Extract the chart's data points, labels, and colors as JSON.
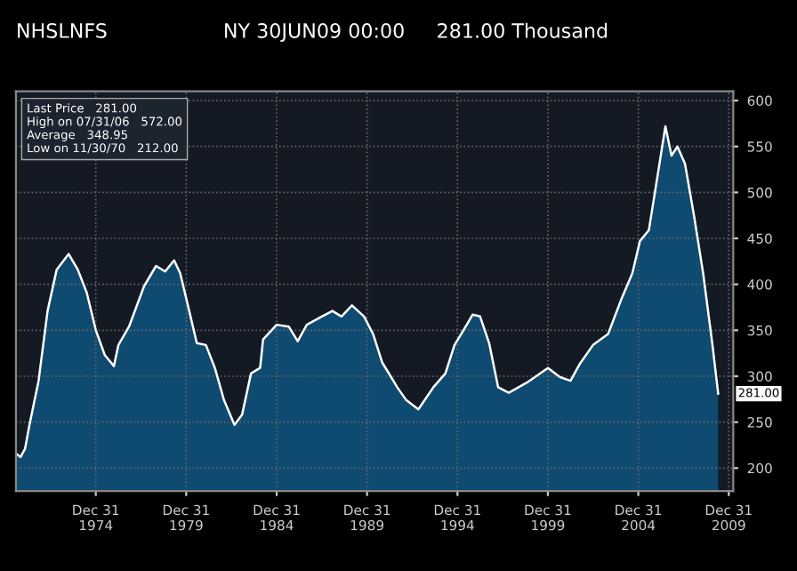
{
  "chart_data": {
    "type": "area",
    "title": "NHSLNFS",
    "subtitle": "NY 30JUN09 00:00     281.00 Thousand",
    "annotations": [
      "Last Price   281.00",
      "High on 07/31/06   572.00",
      "Average   348.95",
      "Low on 11/30/70   212.00",
      {
        "text": "281.00",
        "x": "2009-06",
        "y": 281
      }
    ],
    "x": [
      "1970-08",
      "1970-11",
      "1971-02",
      "1971-05",
      "1971-11",
      "1972-05",
      "1972-11",
      "1973-07",
      "1974-01",
      "1974-07",
      "1975-01",
      "1975-07",
      "1976-01",
      "1976-04",
      "1976-11",
      "1977-09",
      "1978-05",
      "1978-11",
      "1979-05",
      "1979-09",
      "1980-03",
      "1980-08",
      "1981-02",
      "1981-08",
      "1982-02",
      "1982-09",
      "1983-02",
      "1983-08",
      "1984-02",
      "1984-04",
      "1985-01",
      "1985-09",
      "1986-03",
      "1986-09",
      "1987-07",
      "1988-02",
      "1988-08",
      "1989-03",
      "1989-11",
      "1990-05",
      "1990-11",
      "1991-05",
      "1991-09",
      "1992-03",
      "1992-11",
      "1993-09",
      "1994-05",
      "1994-11",
      "1995-05",
      "1995-11",
      "1996-04",
      "1996-10",
      "1997-04",
      "1997-11",
      "1998-11",
      "2000-01",
      "2000-09",
      "2001-04",
      "2001-10",
      "2002-07",
      "2003-05",
      "2004-02",
      "2004-09",
      "2005-02",
      "2005-08",
      "2006-02",
      "2006-07",
      "2006-11",
      "2007-03",
      "2007-08",
      "2008-02",
      "2008-08",
      "2009-02",
      "2009-06"
    ],
    "values": [
      216,
      212,
      221,
      247,
      295,
      371,
      416,
      433,
      416,
      391,
      350,
      323,
      311,
      334,
      354,
      398,
      420,
      414,
      426,
      412,
      371,
      336,
      334,
      309,
      274,
      247,
      258,
      303,
      309,
      340,
      356,
      354,
      338,
      356,
      365,
      371,
      365,
      377,
      365,
      346,
      315,
      299,
      288,
      274,
      264,
      288,
      303,
      334,
      350,
      367,
      365,
      336,
      288,
      282,
      293,
      309,
      299,
      295,
      313,
      334,
      346,
      385,
      412,
      447,
      459,
      521,
      572,
      540,
      550,
      531,
      474,
      412,
      336,
      281
    ],
    "color": "#0f4a70",
    "xlim": [
      "1970-08",
      "2010-04"
    ],
    "ylim": [
      175,
      610
    ],
    "xticks": [
      {
        "value": "1974-12-31",
        "label": "Dec 31\n1974"
      },
      {
        "value": "1979-12-31",
        "label": "Dec 31\n1979"
      },
      {
        "value": "1984-12-31",
        "label": "Dec 31\n1984"
      },
      {
        "value": "1989-12-31",
        "label": "Dec 31\n1989"
      },
      {
        "value": "1994-12-31",
        "label": "Dec 31\n1994"
      },
      {
        "value": "1999-12-31",
        "label": "Dec 31\n1999"
      },
      {
        "value": "2004-12-31",
        "label": "Dec 31\n2004"
      },
      {
        "value": "2009-12-31",
        "label": "Dec 31\n2009"
      }
    ],
    "yticks": [
      200,
      250,
      300,
      350,
      400,
      450,
      500,
      550,
      600
    ],
    "grid": true
  }
}
